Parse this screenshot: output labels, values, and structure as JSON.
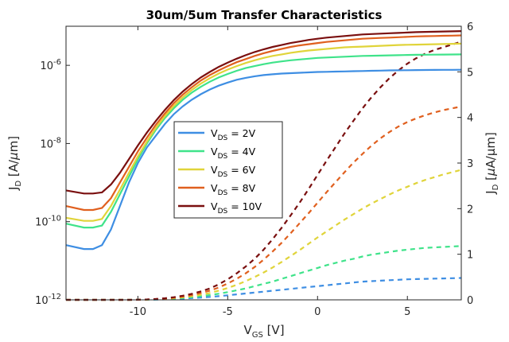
{
  "chart_data": {
    "type": "line",
    "title": "30um/5um Transfer Characteristics",
    "xlabel": {
      "main": "V",
      "sub": "GS",
      "unit": " [V]"
    },
    "ylabel_left": {
      "main": "J",
      "sub": "D",
      "unit": " [A/",
      "mu": "μ",
      "unit_end": "m]"
    },
    "ylabel_right": {
      "main": "J",
      "sub": "D",
      "unit": " [",
      "mu": "μ",
      "unit_end": "A/μm]"
    },
    "xlim": [
      -14,
      8
    ],
    "ylim_left_log10": [
      -12,
      -5
    ],
    "ylim_right": [
      0,
      6
    ],
    "left_scale": "log",
    "right_scale": "linear",
    "x_ticks": [
      -10,
      -5,
      0,
      5
    ],
    "x_tick_labels": [
      "-10",
      "-5",
      "0",
      "5"
    ],
    "y_left_ticks_log10": [
      -12,
      -10,
      -8,
      -6
    ],
    "y_left_tick_labels": [
      {
        "base": "10",
        "exp": "-12"
      },
      {
        "base": "10",
        "exp": "-10"
      },
      {
        "base": "10",
        "exp": "-8"
      },
      {
        "base": "10",
        "exp": "-6"
      }
    ],
    "y_right_ticks": [
      0,
      1,
      2,
      3,
      4,
      5,
      6
    ],
    "y_right_tick_labels": [
      "0",
      "1",
      "2",
      "3",
      "4",
      "5",
      "6"
    ],
    "grid": false,
    "legend_placement": "center-left",
    "x": [
      -14,
      -13,
      -12.5,
      -12,
      -11.5,
      -11,
      -10.5,
      -10,
      -9.5,
      -9,
      -8.5,
      -8,
      -7.5,
      -7,
      -6.5,
      -6,
      -5.5,
      -5,
      -4.5,
      -4,
      -3.5,
      -3,
      -2.5,
      -2,
      -1.5,
      -1,
      -0.5,
      0,
      0.5,
      1,
      1.5,
      2,
      2.5,
      3,
      3.5,
      4,
      4.5,
      5,
      5.5,
      6,
      6.5,
      7,
      7.5,
      8
    ],
    "series": [
      {
        "name": {
          "main": "V",
          "sub": "DS",
          "rest": " = 2V"
        },
        "color": "#3e8ee3",
        "log_values": [
          -10.6,
          -10.7,
          -10.7,
          -10.6,
          -10.2,
          -9.6,
          -9.0,
          -8.5,
          -8.1,
          -7.8,
          -7.5,
          -7.25,
          -7.05,
          -6.88,
          -6.74,
          -6.62,
          -6.52,
          -6.44,
          -6.37,
          -6.32,
          -6.28,
          -6.25,
          -6.23,
          -6.21,
          -6.2,
          -6.19,
          -6.18,
          -6.17,
          -6.165,
          -6.16,
          -6.155,
          -6.15,
          -6.145,
          -6.14,
          -6.135,
          -6.13,
          -6.128,
          -6.125,
          -6.122,
          -6.12,
          -6.118,
          -6.116,
          -6.115,
          -6.113
        ],
        "linear_values": [
          0,
          0,
          0,
          0,
          0,
          0,
          0,
          0.001,
          0.003,
          0.006,
          0.011,
          0.018,
          0.027,
          0.038,
          0.05,
          0.065,
          0.08,
          0.1,
          0.12,
          0.14,
          0.16,
          0.18,
          0.2,
          0.22,
          0.24,
          0.26,
          0.28,
          0.3,
          0.32,
          0.34,
          0.36,
          0.38,
          0.4,
          0.41,
          0.42,
          0.43,
          0.44,
          0.45,
          0.455,
          0.46,
          0.465,
          0.47,
          0.475,
          0.48
        ]
      },
      {
        "name": {
          "main": "V",
          "sub": "DS",
          "rest": " = 4V"
        },
        "color": "#3fe38a",
        "log_values": [
          -10.05,
          -10.15,
          -10.15,
          -10.1,
          -9.75,
          -9.3,
          -8.85,
          -8.4,
          -8.0,
          -7.65,
          -7.35,
          -7.1,
          -6.88,
          -6.7,
          -6.55,
          -6.42,
          -6.31,
          -6.22,
          -6.14,
          -6.07,
          -6.02,
          -5.97,
          -5.93,
          -5.9,
          -5.87,
          -5.85,
          -5.83,
          -5.81,
          -5.8,
          -5.79,
          -5.78,
          -5.77,
          -5.76,
          -5.755,
          -5.75,
          -5.745,
          -5.74,
          -5.735,
          -5.73,
          -5.728,
          -5.726,
          -5.724,
          -5.722,
          -5.72
        ],
        "linear_values": [
          0,
          0,
          0,
          0,
          0,
          0,
          0,
          0.001,
          0.004,
          0.009,
          0.017,
          0.028,
          0.042,
          0.06,
          0.08,
          0.105,
          0.135,
          0.17,
          0.21,
          0.25,
          0.3,
          0.35,
          0.4,
          0.46,
          0.52,
          0.58,
          0.64,
          0.7,
          0.76,
          0.81,
          0.86,
          0.9,
          0.95,
          0.99,
          1.02,
          1.05,
          1.08,
          1.1,
          1.12,
          1.14,
          1.15,
          1.16,
          1.17,
          1.18
        ]
      },
      {
        "name": {
          "main": "V",
          "sub": "DS",
          "rest": " = 6V"
        },
        "color": "#e0d43a",
        "log_values": [
          -9.9,
          -9.98,
          -9.98,
          -9.93,
          -9.6,
          -9.18,
          -8.75,
          -8.33,
          -7.95,
          -7.6,
          -7.3,
          -7.04,
          -6.82,
          -6.63,
          -6.47,
          -6.33,
          -6.21,
          -6.11,
          -6.02,
          -5.94,
          -5.87,
          -5.81,
          -5.76,
          -5.72,
          -5.68,
          -5.65,
          -5.62,
          -5.6,
          -5.58,
          -5.56,
          -5.54,
          -5.53,
          -5.52,
          -5.51,
          -5.5,
          -5.49,
          -5.48,
          -5.475,
          -5.47,
          -5.465,
          -5.46,
          -5.455,
          -5.45,
          -5.445
        ],
        "linear_values": [
          0,
          0,
          0,
          0,
          0,
          0,
          0,
          0.002,
          0.006,
          0.012,
          0.022,
          0.036,
          0.055,
          0.08,
          0.11,
          0.15,
          0.2,
          0.26,
          0.33,
          0.41,
          0.5,
          0.6,
          0.71,
          0.83,
          0.96,
          1.09,
          1.23,
          1.37,
          1.5,
          1.63,
          1.76,
          1.88,
          2.0,
          2.11,
          2.21,
          2.31,
          2.4,
          2.48,
          2.56,
          2.63,
          2.69,
          2.75,
          2.8,
          2.85
        ]
      },
      {
        "name": {
          "main": "V",
          "sub": "DS",
          "rest": " = 8V"
        },
        "color": "#e0601f",
        "log_values": [
          -9.6,
          -9.7,
          -9.7,
          -9.65,
          -9.4,
          -9.0,
          -8.6,
          -8.2,
          -7.85,
          -7.52,
          -7.23,
          -6.97,
          -6.75,
          -6.56,
          -6.39,
          -6.25,
          -6.13,
          -6.02,
          -5.92,
          -5.84,
          -5.76,
          -5.69,
          -5.63,
          -5.58,
          -5.53,
          -5.49,
          -5.46,
          -5.43,
          -5.4,
          -5.38,
          -5.36,
          -5.34,
          -5.32,
          -5.31,
          -5.3,
          -5.29,
          -5.28,
          -5.27,
          -5.26,
          -5.255,
          -5.25,
          -5.245,
          -5.24,
          -5.235
        ],
        "linear_values": [
          0,
          0,
          0,
          0,
          0,
          0,
          0,
          0.002,
          0.007,
          0.015,
          0.028,
          0.047,
          0.072,
          0.105,
          0.148,
          0.2,
          0.27,
          0.36,
          0.46,
          0.58,
          0.72,
          0.88,
          1.06,
          1.25,
          1.46,
          1.68,
          1.9,
          2.13,
          2.36,
          2.58,
          2.8,
          3.01,
          3.2,
          3.38,
          3.54,
          3.68,
          3.8,
          3.9,
          3.98,
          4.05,
          4.11,
          4.16,
          4.2,
          4.24
        ]
      },
      {
        "name": {
          "main": "V",
          "sub": "DS",
          "rest": " = 10V"
        },
        "color": "#7a0f0f",
        "log_values": [
          -9.2,
          -9.28,
          -9.28,
          -9.25,
          -9.05,
          -8.75,
          -8.4,
          -8.05,
          -7.72,
          -7.42,
          -7.14,
          -6.89,
          -6.67,
          -6.48,
          -6.31,
          -6.17,
          -6.04,
          -5.93,
          -5.83,
          -5.74,
          -5.66,
          -5.59,
          -5.53,
          -5.48,
          -5.43,
          -5.39,
          -5.35,
          -5.32,
          -5.29,
          -5.27,
          -5.25,
          -5.23,
          -5.21,
          -5.2,
          -5.19,
          -5.18,
          -5.17,
          -5.16,
          -5.15,
          -5.145,
          -5.14,
          -5.135,
          -5.13,
          -5.125
        ],
        "linear_values": [
          0,
          0,
          0,
          0,
          0,
          0,
          0,
          0.003,
          0.009,
          0.019,
          0.035,
          0.058,
          0.09,
          0.13,
          0.185,
          0.25,
          0.34,
          0.45,
          0.58,
          0.73,
          0.9,
          1.1,
          1.33,
          1.58,
          1.85,
          2.13,
          2.43,
          2.74,
          3.05,
          3.35,
          3.65,
          3.93,
          4.2,
          4.44,
          4.66,
          4.86,
          5.03,
          5.18,
          5.3,
          5.4,
          5.48,
          5.54,
          5.6,
          5.66
        ]
      }
    ]
  }
}
